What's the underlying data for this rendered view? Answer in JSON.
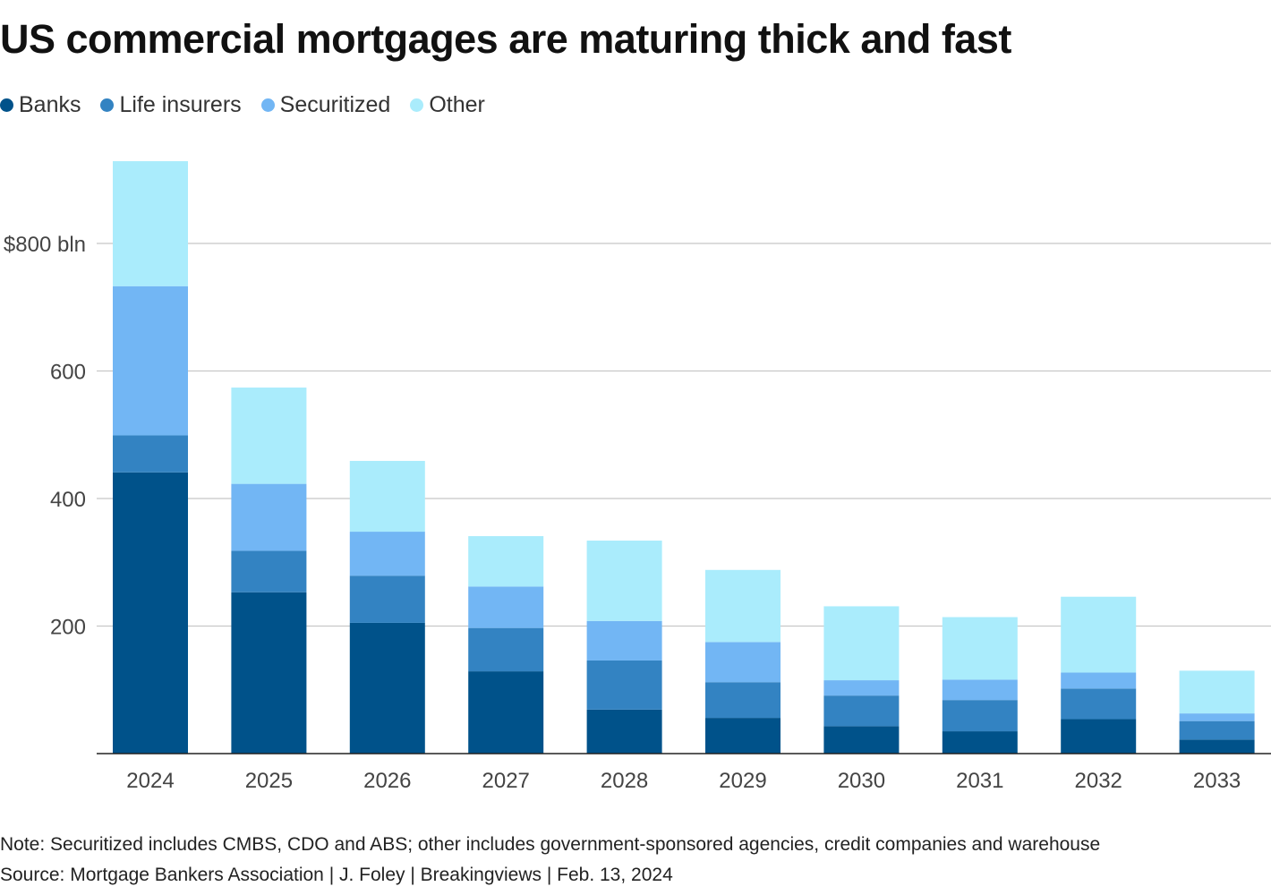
{
  "chart_data": {
    "type": "bar",
    "stacked": true,
    "title": "US commercial mortgages are maturing thick and fast",
    "categories": [
      "2024",
      "2025",
      "2026",
      "2027",
      "2028",
      "2029",
      "2030",
      "2031",
      "2032",
      "2033"
    ],
    "series": [
      {
        "name": "Banks",
        "color": "#00528a",
        "values": [
          441,
          253,
          205,
          129,
          69,
          56,
          43,
          35,
          54,
          22
        ]
      },
      {
        "name": "Life insurers",
        "color": "#3383c2",
        "values": [
          58,
          65,
          74,
          68,
          77,
          56,
          48,
          49,
          48,
          29
        ]
      },
      {
        "name": "Securitized",
        "color": "#72b6f4",
        "values": [
          234,
          105,
          69,
          65,
          62,
          63,
          24,
          32,
          25,
          12
        ]
      },
      {
        "name": "Other",
        "color": "#aaecfc",
        "values": [
          196,
          151,
          111,
          79,
          126,
          113,
          116,
          98,
          119,
          67
        ]
      }
    ],
    "yticks": [
      {
        "value": 200,
        "label": "200"
      },
      {
        "value": 400,
        "label": "400"
      },
      {
        "value": 600,
        "label": "600"
      },
      {
        "value": 800,
        "label": "$800 bln"
      }
    ],
    "ylim": [
      0,
      930
    ],
    "grid": true,
    "legend_position": "top-left"
  },
  "note": "Note: Securitized includes CMBS, CDO and ABS; other includes government-sponsored agencies, credit companies and warehouse",
  "source": "Source: Mortgage Bankers Association | J. Foley | Breakingviews | Feb. 13, 2024"
}
